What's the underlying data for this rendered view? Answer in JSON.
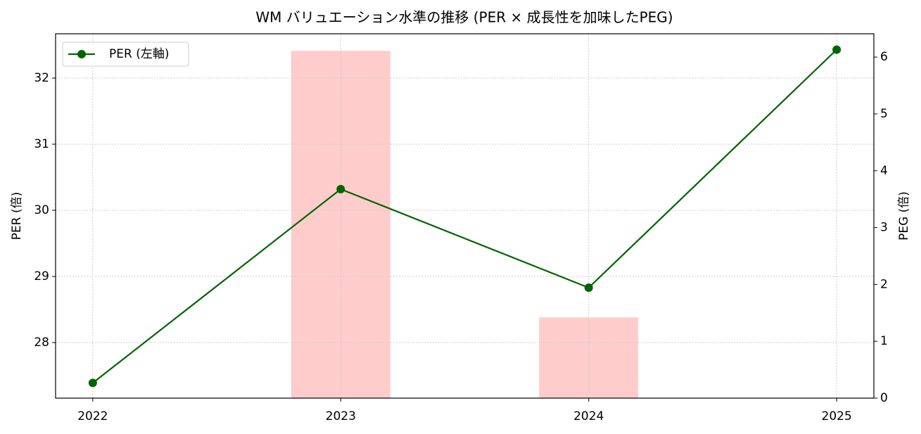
{
  "chart_data": {
    "type": "line_bar",
    "title": "WM バリュエーション水準の推移 (PER × 成長性を加味したPEG)",
    "x": [
      2022,
      2023,
      2024,
      2025
    ],
    "xlim": [
      2021.85,
      2025.15
    ],
    "xticks": [
      2022,
      2023,
      2024,
      2025
    ],
    "ylabel": "PER (倍)",
    "y2label": "PEG (倍)",
    "ylim": [
      27.16,
      32.67
    ],
    "yticks": [
      28,
      29,
      30,
      31,
      32
    ],
    "y2lim": [
      0,
      6.41
    ],
    "y2ticks": [
      0,
      1,
      2,
      3,
      4,
      5,
      6
    ],
    "grid": true,
    "legend": "upper left",
    "series": [
      {
        "name": "PER (左軸)",
        "type": "line",
        "color": "#006400",
        "values": [
          27.39,
          30.32,
          28.83,
          32.43
        ]
      },
      {
        "type": "bar",
        "axis": "y2",
        "color": "#ffcccc",
        "bar_width": 0.4,
        "values": [
          null,
          6.11,
          1.42,
          null
        ]
      }
    ]
  }
}
